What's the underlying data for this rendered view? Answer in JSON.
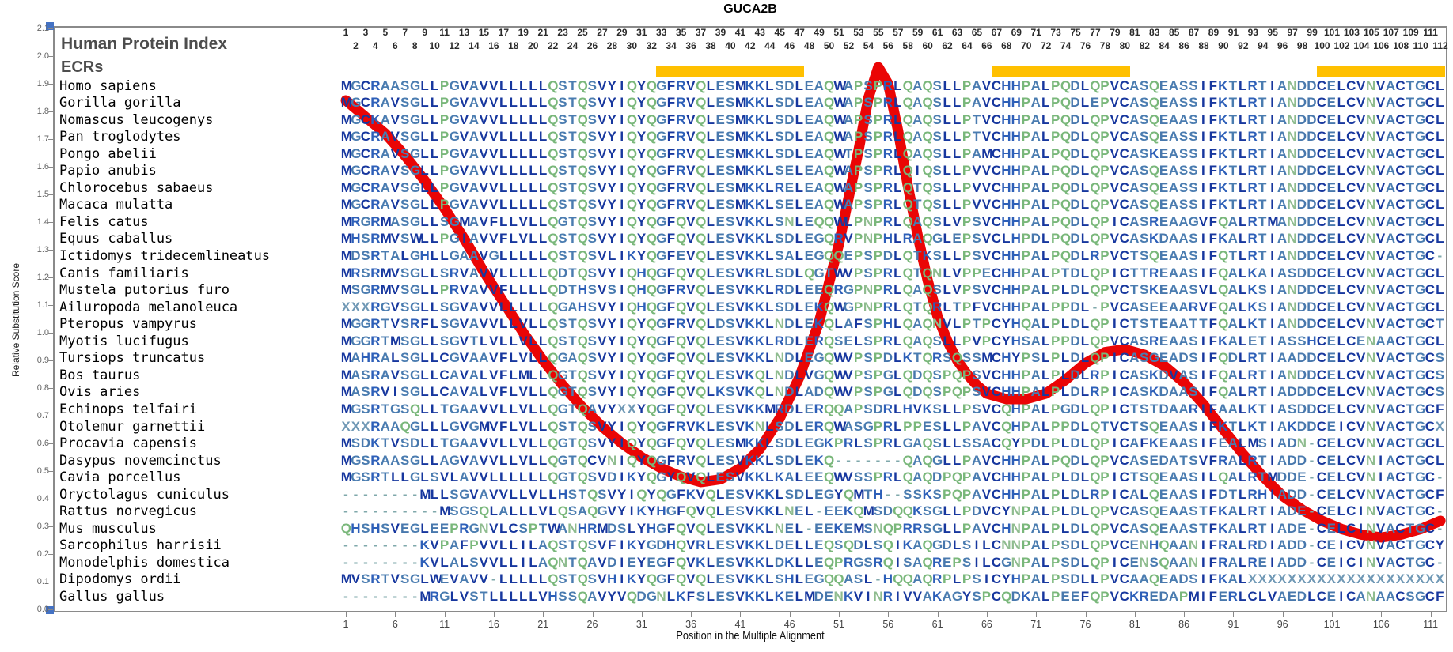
{
  "title": "GUCA2B",
  "header": {
    "hpi_label": "Human Protein Index",
    "ecrs_label": "ECRs"
  },
  "axes": {
    "y_label": "Relative Substitution Score",
    "x_label": "Position in the Multiple Alignment",
    "y_ticks": [
      "0.0",
      "0.1",
      "0.2",
      "0.3",
      "0.4",
      "0.5",
      "0.6",
      "0.7",
      "0.8",
      "0.9",
      "1.0",
      "1.1",
      "1.2",
      "1.3",
      "1.4",
      "1.5",
      "1.6",
      "1.7",
      "1.8",
      "1.9",
      "2.0",
      "2.1"
    ],
    "y_range": [
      0.0,
      2.1
    ],
    "x_ticks": [
      1,
      6,
      11,
      16,
      21,
      26,
      31,
      36,
      41,
      46,
      51,
      56,
      61,
      66,
      71,
      76,
      81,
      86,
      91,
      96,
      101,
      106,
      111
    ],
    "x_range": [
      1,
      112
    ]
  },
  "ecr_bars": [
    {
      "start": 33,
      "end": 47
    },
    {
      "start": 67,
      "end": 80
    },
    {
      "start": 100,
      "end": 112
    }
  ],
  "colors": {
    "ecr_bar": "#FFC000",
    "curve": "#ea0505",
    "corner_marker": "#4472c4",
    "residue_default": "#4a7cb0"
  },
  "residue_colors": {
    "L": "#17379e",
    "I": "#17379e",
    "V": "#17379e",
    "F": "#17379e",
    "M": "#17379e",
    "W": "#17379e",
    "C": "#17379e",
    "Y": "#17379e",
    "K": "#2d5fb8",
    "R": "#2d5fb8",
    "H": "#2d5fb8",
    "A": "#4a7cb0",
    "S": "#4a7cb0",
    "T": "#4a7cb0",
    "G": "#4a7cb0",
    "D": "#4878ad",
    "E": "#4878ad",
    "P": "#79b77a",
    "Q": "#79b77a",
    "N": "#8fbc8f",
    "X": "#6f98b5",
    "-": "#7fa8ab"
  },
  "alignment": {
    "num_positions": 112,
    "species": [
      {
        "name": "Homo sapiens",
        "seq": "MGCRAASGLLPGVAVVLLLLLQSTQSVYIQYQGFRVQLESMKKLSDLEAQWAPSPRLQAQSLLPAVCHHPALPQDLQPVCASQEASSIFKTLRTIANDDCELCVNVACTGCL"
      },
      {
        "name": "Gorilla gorilla",
        "seq": "MGCRAVSGLLPGVAVVLLLLLQSTQSVYIQYQGFRVQLESMKKLSDLEAQWAPSPRLQAQSLLPAVCHHPALPQDLEPVCASQEASSIFKTLRTIANDDCELCVNVACTGCL"
      },
      {
        "name": "Nomascus leucogenys",
        "seq": "MGCKAVSGLLPGVAVVLLLLLQSTQSVYIQYQGFRVQLESMKKLSDLEAQWAPSPRLQAQSLLPTVCHHPALPQDLQPVCASQEAASIFKTLRTIANDDCELCVNVACTGCL"
      },
      {
        "name": "Pan troglodytes",
        "seq": "MGCRAVSGLLPGVAVVLLLLLQSTQSVYIQYQGFRVQLESMKKLSDLEAQWAPSPRLQAQSLLPTVCHHPALPQDLQPVCASQEASSIFKTLRTIANDDCELCVNVACTGCL"
      },
      {
        "name": "Pongo abelii",
        "seq": "MGCRAVSGLLPGVAVVLLLLLQSTQSVYIQYQGFRVQLESMKKLSDLEAQWTPSPRLQAQSLLPAMCHHPALPQDLQPVCASKEASSIFKTLRTIANDDCELCVNVACTGCL"
      },
      {
        "name": "Papio anubis",
        "seq": "MGCRAVSGLLPGVAVVLLLLLQSTQSVYIQYQGFRVQLESMKKLSELEAQWAPSPRLQIQSLLPVVCHHPALPQDLQPVCASQEASSIFKTLRTIANDDCELCVNVACTGCL"
      },
      {
        "name": "Chlorocebus sabaeus",
        "seq": "MGCRAVSGLLPGVAVVLLLLLQSTQSVYIQYQGFRVQLESMKKLRELEAQWAPSPRLQTQSLLPVVCHHPALPQDLQPVCASQEASSIFKTLRTIANDDCELCVNVACTGCL"
      },
      {
        "name": "Macaca mulatta",
        "seq": "MGCRAVSGLLPGVAVVLLLLLQSTQSVYIQYQGFRVQLESMKKLSELEAQWAPSPRLQTQSLLPVVCHHPALPQDLQPVCASQEASSIFKTLRTIANDDCELCVNVACTGCL"
      },
      {
        "name": "Felis catus",
        "seq": "MRGRMASGLLSGMAVFLLVLLQGTQSVYIQYQGFQVQLESVKKLSNLEQQWLPNPRLQAQSLVPSVCHHPALPQDLQPICASREAAGVFQALRTMANDDCELCVNVACTGCL"
      },
      {
        "name": "Equus caballus",
        "seq": "MHSRMVSWLLPGIAVVFLVLLQSTQSVYIQYQGFQVQLESVKKLSDLEGQRVPNPHLRAQGLEPSVCLHPDLPQDLQPVCASKDAASIFKALRTIANDDCELCVNVACTGCL"
      },
      {
        "name": "Ictidomys tridecemlineatus",
        "seq": "MDSRTALGHLLGAAVGLLLLLQSTQSVLIKYQGFEVQLESVKKLSALEGQQEPSPDLQTKSLLPSVCHHPALPQDLRPVCTSQEAASIFQTLRTIANDDCELCVNVACTGC-"
      },
      {
        "name": "Canis familiaris",
        "seq": "MRSRMVSGLLSRVAVVLLLLLQDTQSVYIQHQGFQVQLESVKRLSDLQGTWVPSPRLQTQNLVPPECHHPALPTDLQPICTTREAASIFQALKAIASDDCELCVNVACTGCL"
      },
      {
        "name": "Mustela putorius furo",
        "seq": "MSGRMVSGLLPRVAVVFLLLLQDTHSVSIQHQGFRVQLESVKKLRDLEEQRGPNPRLQAQSLVPSVCHHPALPLDLQPVCTSKEAASVLQALKSIANDDCELCVNVACTGCL"
      },
      {
        "name": "Ailuropoda melanoleuca",
        "seq": "XXXRGVSGLLSGVAVVLLLLLQGAHSVYIQHQGFQVQLESVKKLSDLEKQWGPNPRLQTQRLTPFVCHHPALPPDL-PVCASEEAARVFQALKSIANDDCELCVNVACTGCL"
      },
      {
        "name": "Pteropus vampyrus",
        "seq": "MGGRTVSRFLSGVAVVLLVLLQSTQSVYIQYQGFRVQLDSVKKLNDLEKQLAFSPHLQAQNVLPTPCYHQALPLDLQPICTSTEAATTFQALKTIANDDCELCVNVACTGCT"
      },
      {
        "name": "Myotis lucifugus",
        "seq": "MGGRTMSGLLSGVTLVLLVLLQSTQSVYIQYQGFQVQLESVKKLRDLERQSELSPRLQAQSLLPVPCYHSALPPDLQPVCASREAASIFKALETIASSHCELCENAACTGCL"
      },
      {
        "name": "Tursiops truncatus",
        "seq": "MAHRALSGLLCGVAAVFLVLLQGAQSVYIQYQGFQVQLESVKKLNDLEGQWVPSPDLKTQRSQSSMCHYPSLPLDLQPICASGEADSIFQDLRTIAADDCELCVNVACTGCS"
      },
      {
        "name": "Bos taurus",
        "seq": "MASRAVSGLLCAVALVFLMLLQGTQSVYIQYQGFQVQLESVKQLNDLVGQWVPSPGLQDQSPQPSVCHHPALPLDLRPICASKDVASIFQALRTIANDDCELCVNVACTGCS"
      },
      {
        "name": "Ovis aries",
        "seq": "MASRVISGLLCAVALVFLVLLQGTQSVYIQYQGFQVQLKSVKQLNDLADQWVPSPGLQDQSPQPSVCHHPALPLDLRPICASKDAASIFQALRTIADDDCELCVNVACTGCS"
      },
      {
        "name": "Echinops telfairi",
        "seq": "MGSRTGSQLLTGAAVVLLVLLQGTQAVYXXYQGFQVQLESVKKMRDLERQQAPSDRLHVKSLLPSVCQHPALPGDLQPICTSTDAARIFAALKTIASDDCELCVNVACTGCF"
      },
      {
        "name": "Otolemur garnettii",
        "seq": "XXXRAAQGLLLGVGMVFLVLLQSTQSVYIQYQGFRVKLESVKNLSDLERQWASGPRLPPESLLPAVCQHPALPPDLQTVCTSQEAASIFKTLKTIAKDDCEICVNVACTGCX"
      },
      {
        "name": "Procavia capensis",
        "seq": "MSDKTVSDLLTGAAVVLLVLLQGTQSVYIQYQGFQVQLESMKKLSDLEGKPRLSPRLGAQSLLSSACQYPDLPLDLQPICAFKEAASIFEALMSIADN-CELCVNVACTGCL"
      },
      {
        "name": "Dasypus novemcinctus",
        "seq": "MGSRAASGLLAGVAVVLLVLLQGTQCVNIQYQGFRVQLESVKKLSDLEKQ-------QAQGLLPAVCHHPALPQDLQPVCASEDATSVFRALRTIADD-CELCVNIACTGCL"
      },
      {
        "name": "Cavia porcellus",
        "seq": "MGSRTLLGLSVLAVVLLLLLLQGTQSVDIKYQGYQVQLESVKKLKALEEQWVSSPRLQAQDPQPAVCHHPALPLDLQPICTSQEAASILQALRTMDDE-CELCVNIACTGC-"
      },
      {
        "name": "Oryctolagus cuniculus",
        "seq": "--------MLLSGVAVVLLVLLHSTQSVYIQYQGFKVQLESVKKLSDLEGYQMTH--SSKSPQPAVCHHPALPLDLRPICALQEAASIFDTLRHIADD-CELCVNVACTGCF"
      },
      {
        "name": "Rattus norvegicus",
        "seq": "----------MSGSQLALLLVLQSAQGVYIKYHGFQVQLESVKKLNEL-EEKQMSDQQKSGLLPDVCYNPALPLDLQPVCASQEAASTFKALRTIADE-CELCINVACTGC-"
      },
      {
        "name": "Mus musculus",
        "seq": "QHSHSVEGLEEPRGNVLCSPTWANHRMDSLYHGFQVQLESVKKLNEL-EEKEMSNQPRRSGLLPAVCHNPALPLDLQPVCASQEAASTFKALRTIADE-CELCINVACTGC-"
      },
      {
        "name": "Sarcophilus harrisii",
        "seq": "--------KVPAFPVVLLILAQSTQSVFIKYGDHQVRLESVKKLDELLEQSQDLSQIKAQGDLSILCNNPALPSDLQPVCENHQAANIFRALRDIADD-CEICVNVACTGCY"
      },
      {
        "name": "Monodelphis domestica",
        "seq": "--------KVLALSVVLLILAQNTQAVDIEYEGFQVKLESVKKLDKLLEQPRGSRQISAQREPSILCGNPALPSDLQPICENSQAANIFRALREIADD-CEICINVACTGC-"
      },
      {
        "name": "Dipodomys ordii",
        "seq": "MVSRTVSGLWEVAVV-LLLLLQSTQSVHIKYQGFQVQLESVKKLSHLEGQQASL-HQQAQRPLPSICYHPALPSDLLPVCAAQEADSIFKALXXXXXXXXXXXXXXXXXXXX"
      },
      {
        "name": "Gallus gallus",
        "seq": "--------MRGLVSTLLLLLVHSSQAVYVQDGNLKFSLESVKKLKELMDENKVINRIVVAKAGYSPCQDKALPEEFQPVCKREDAPMIFERLCLVAEDLCEICANAACSGCF"
      }
    ]
  },
  "chart_data": {
    "type": "line",
    "title": "GUCA2B",
    "xlabel": "Position in the Multiple Alignment",
    "ylabel": "Relative Substitution Score",
    "xlim": [
      1,
      112
    ],
    "ylim": [
      0.0,
      2.1
    ],
    "grid": false,
    "series_name": "Relative substitution score curve",
    "points": [
      [
        1,
        1.84
      ],
      [
        3,
        1.78
      ],
      [
        5,
        1.72
      ],
      [
        7,
        1.64
      ],
      [
        9,
        1.55
      ],
      [
        11,
        1.45
      ],
      [
        13,
        1.34
      ],
      [
        15,
        1.22
      ],
      [
        17,
        1.11
      ],
      [
        19,
        1.0
      ],
      [
        21,
        0.9
      ],
      [
        23,
        0.81
      ],
      [
        25,
        0.73
      ],
      [
        27,
        0.66
      ],
      [
        29,
        0.6
      ],
      [
        31,
        0.55
      ],
      [
        33,
        0.51
      ],
      [
        35,
        0.48
      ],
      [
        37,
        0.46
      ],
      [
        39,
        0.47
      ],
      [
        41,
        0.51
      ],
      [
        43,
        0.58
      ],
      [
        45,
        0.69
      ],
      [
        47,
        0.84
      ],
      [
        49,
        1.04
      ],
      [
        51,
        1.32
      ],
      [
        53,
        1.66
      ],
      [
        54,
        1.85
      ],
      [
        55,
        1.96
      ],
      [
        56,
        1.9
      ],
      [
        57,
        1.73
      ],
      [
        58,
        1.53
      ],
      [
        59,
        1.35
      ],
      [
        60,
        1.19
      ],
      [
        61,
        1.06
      ],
      [
        62,
        0.97
      ],
      [
        63,
        0.9
      ],
      [
        64,
        0.85
      ],
      [
        65,
        0.81
      ],
      [
        66,
        0.78
      ],
      [
        68,
        0.76
      ],
      [
        70,
        0.76
      ],
      [
        72,
        0.78
      ],
      [
        74,
        0.83
      ],
      [
        76,
        0.89
      ],
      [
        78,
        0.93
      ],
      [
        80,
        0.94
      ],
      [
        82,
        0.92
      ],
      [
        84,
        0.88
      ],
      [
        86,
        0.82
      ],
      [
        88,
        0.74
      ],
      [
        90,
        0.65
      ],
      [
        92,
        0.56
      ],
      [
        94,
        0.48
      ],
      [
        96,
        0.41
      ],
      [
        98,
        0.36
      ],
      [
        100,
        0.32
      ],
      [
        102,
        0.29
      ],
      [
        104,
        0.27
      ],
      [
        106,
        0.26
      ],
      [
        108,
        0.27
      ],
      [
        110,
        0.29
      ],
      [
        112,
        0.32
      ]
    ]
  }
}
